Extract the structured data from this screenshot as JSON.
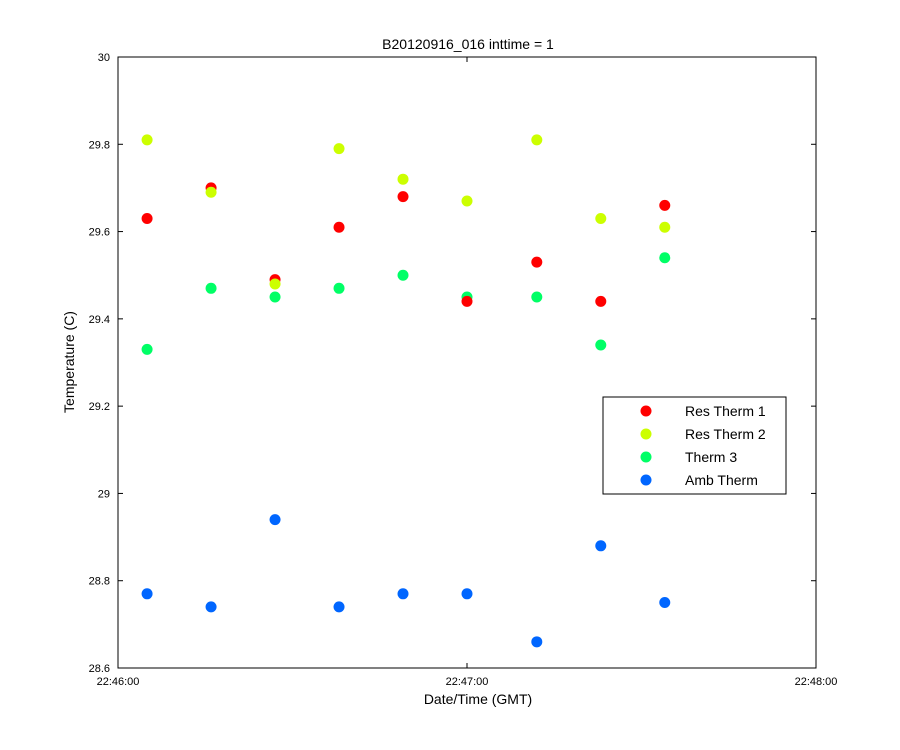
{
  "chart_data": {
    "type": "scatter",
    "title": "B20120916_016 inttime = 1",
    "xlabel": "Date/Time (GMT)",
    "ylabel": "Temperature (C)",
    "x_ticks": [
      "22:46:00",
      "22:47:00",
      "22:48:00"
    ],
    "y_ticks": [
      "28.6",
      "28.8",
      "29",
      "29.2",
      "29.4",
      "29.6",
      "29.8",
      "30"
    ],
    "xlim": [
      "22:46:00",
      "22:48:00"
    ],
    "ylim": [
      28.6,
      30
    ],
    "grid": false,
    "legend_position": "right",
    "x": [
      "22:46:05",
      "22:46:16",
      "22:46:27",
      "22:46:38",
      "22:46:49",
      "22:47:00",
      "22:47:12",
      "22:47:23",
      "22:47:34"
    ],
    "series": [
      {
        "name": "Res Therm 1",
        "color": "#ff0000",
        "values": [
          29.63,
          29.7,
          29.49,
          29.61,
          29.68,
          29.44,
          29.53,
          29.44,
          29.66
        ]
      },
      {
        "name": "Res Therm 2",
        "color": "#ccff00",
        "values": [
          29.81,
          29.69,
          29.48,
          29.79,
          29.72,
          29.67,
          29.81,
          29.63,
          29.61
        ]
      },
      {
        "name": "Therm 3",
        "color": "#00ff66",
        "values": [
          29.33,
          29.47,
          29.45,
          29.47,
          29.5,
          29.45,
          29.45,
          29.34,
          29.54
        ]
      },
      {
        "name": "Amb Therm",
        "color": "#0066ff",
        "values": [
          28.77,
          28.74,
          28.94,
          28.74,
          28.77,
          28.77,
          28.66,
          28.88,
          28.75
        ]
      }
    ]
  }
}
